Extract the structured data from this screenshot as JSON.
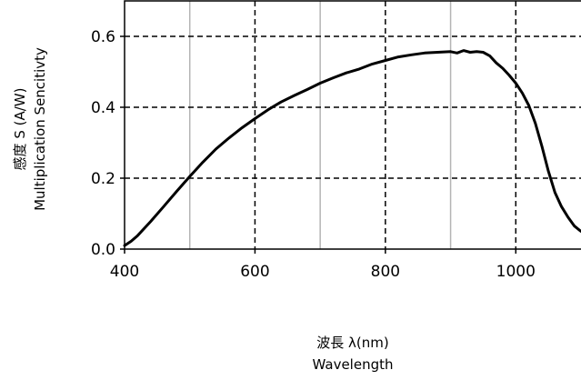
{
  "chart_data": {
    "type": "line",
    "title": "",
    "xlabel": [
      "波長 λ(nm)",
      "Wavelength"
    ],
    "ylabel": [
      "感度 S (A/W)",
      "Multiplication Sencitivty"
    ],
    "xlim": [
      400,
      1100
    ],
    "ylim": [
      0.0,
      0.7
    ],
    "x_ticks": [
      400,
      600,
      800,
      1000
    ],
    "x_tick_labels": [
      "400",
      "600",
      "800",
      "1000"
    ],
    "y_ticks": [
      0.0,
      0.2,
      0.4,
      0.6
    ],
    "y_tick_labels": [
      "0.0",
      "0.2",
      "0.4",
      "0.6"
    ],
    "grid": {
      "x_major_dashed": [
        600,
        800,
        1000
      ],
      "x_minor_solid": [
        500,
        700,
        900
      ],
      "y_major_dashed": [
        0.2,
        0.4,
        0.6
      ]
    },
    "legend": "none",
    "colors": {
      "line": "#000000",
      "grid_major": "#000000",
      "grid_minor": "#b4b4b4",
      "frame": "#000000"
    },
    "series": [
      {
        "x": [
          400,
          410,
          420,
          440,
          460,
          480,
          500,
          520,
          540,
          560,
          580,
          600,
          620,
          640,
          660,
          680,
          700,
          720,
          740,
          760,
          780,
          800,
          820,
          840,
          860,
          880,
          900,
          910,
          920,
          930,
          940,
          950,
          960,
          970,
          980,
          990,
          1000,
          1010,
          1020,
          1030,
          1040,
          1050,
          1060,
          1070,
          1080,
          1090,
          1100
        ],
        "y": [
          0.01,
          0.022,
          0.038,
          0.078,
          0.12,
          0.163,
          0.205,
          0.245,
          0.282,
          0.313,
          0.342,
          0.368,
          0.393,
          0.415,
          0.433,
          0.45,
          0.468,
          0.483,
          0.497,
          0.508,
          0.522,
          0.532,
          0.542,
          0.548,
          0.553,
          0.555,
          0.557,
          0.553,
          0.56,
          0.555,
          0.557,
          0.555,
          0.545,
          0.525,
          0.51,
          0.49,
          0.468,
          0.44,
          0.405,
          0.355,
          0.29,
          0.22,
          0.16,
          0.12,
          0.09,
          0.065,
          0.05
        ]
      }
    ]
  }
}
